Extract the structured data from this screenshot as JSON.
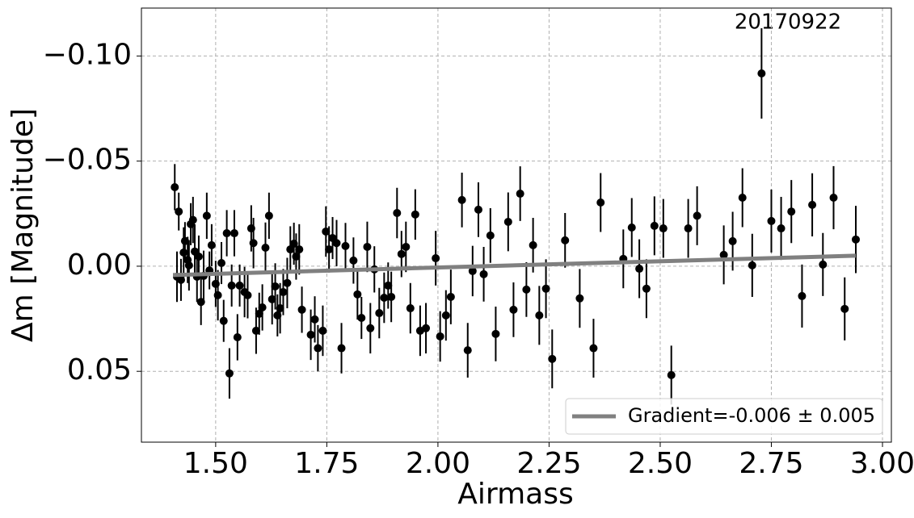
{
  "chart_data": {
    "type": "scatter",
    "xlabel": "Airmass",
    "ylabel": "Δm [Magnitude]",
    "annotation": "20170922",
    "xlim": [
      1.333,
      3.02
    ],
    "ylim": [
      0.0837,
      -0.1228
    ],
    "xticks": [
      {
        "value": 1.5,
        "label": "1.50"
      },
      {
        "value": 1.75,
        "label": "1.75"
      },
      {
        "value": 2.0,
        "label": "2.00"
      },
      {
        "value": 2.25,
        "label": "2.25"
      },
      {
        "value": 2.5,
        "label": "2.50"
      },
      {
        "value": 2.75,
        "label": "2.75"
      },
      {
        "value": 3.0,
        "label": "3.00"
      }
    ],
    "yticks": [
      {
        "value": -0.1,
        "label": "−0.10"
      },
      {
        "value": -0.05,
        "label": "−0.05"
      },
      {
        "value": 0.0,
        "label": "0.00"
      },
      {
        "value": 0.05,
        "label": "0.05"
      }
    ],
    "grid": true,
    "color": "#000000",
    "x": [
      1.408,
      1.413,
      1.417,
      1.422,
      1.428,
      1.431,
      1.437,
      1.44,
      1.444,
      1.449,
      1.453,
      1.458,
      1.462,
      1.467,
      1.473,
      1.48,
      1.486,
      1.491,
      1.5,
      1.505,
      1.513,
      1.518,
      1.525,
      1.531,
      1.536,
      1.542,
      1.549,
      1.554,
      1.565,
      1.572,
      1.58,
      1.585,
      1.591,
      1.598,
      1.605,
      1.612,
      1.62,
      1.627,
      1.634,
      1.639,
      1.645,
      1.652,
      1.661,
      1.668,
      1.676,
      1.681,
      1.688,
      1.694,
      1.714,
      1.723,
      1.73,
      1.741,
      1.748,
      1.755,
      1.763,
      1.772,
      1.783,
      1.792,
      1.81,
      1.819,
      1.828,
      1.841,
      1.848,
      1.857,
      1.868,
      1.879,
      1.888,
      1.895,
      1.908,
      1.918,
      1.928,
      1.938,
      1.949,
      1.96,
      1.973,
      1.995,
      2.005,
      2.018,
      2.029,
      2.054,
      2.067,
      2.078,
      2.091,
      2.103,
      2.118,
      2.13,
      2.158,
      2.17,
      2.185,
      2.199,
      2.214,
      2.228,
      2.243,
      2.257,
      2.286,
      2.319,
      2.35,
      2.366,
      2.417,
      2.436,
      2.453,
      2.469,
      2.487,
      2.507,
      2.525,
      2.563,
      2.583,
      2.643,
      2.663,
      2.685,
      2.707,
      2.728,
      2.75,
      2.772,
      2.795,
      2.819,
      2.842,
      2.866,
      2.89,
      2.915,
      2.94
    ],
    "values": [
      -0.0376,
      0.005,
      -0.026,
      0.0065,
      -0.0065,
      -0.012,
      -0.003,
      -0.0004,
      -0.02,
      -0.022,
      -0.007,
      0.005,
      -0.0046,
      0.017,
      0.0046,
      -0.024,
      0.002,
      -0.01,
      0.0084,
      0.0138,
      -0.0015,
      0.026,
      -0.0157,
      0.051,
      0.0092,
      -0.0157,
      0.0338,
      0.0092,
      0.0123,
      0.0138,
      -0.018,
      -0.011,
      0.0307,
      0.0226,
      0.0196,
      -0.0088,
      -0.024,
      0.0157,
      0.0096,
      0.0234,
      0.02,
      0.0123,
      0.008,
      -0.008,
      -0.0107,
      -0.0046,
      -0.008,
      0.0207,
      0.0326,
      0.0253,
      0.039,
      0.0307,
      -0.0165,
      -0.008,
      -0.0134,
      -0.011,
      0.039,
      -0.0096,
      -0.0027,
      0.0134,
      0.0246,
      -0.0092,
      0.0295,
      0.0015,
      0.0223,
      0.015,
      0.0092,
      0.0146,
      -0.0253,
      -0.0058,
      -0.0092,
      0.02,
      -0.0246,
      0.0307,
      0.0295,
      -0.0038,
      0.0334,
      0.0234,
      0.0146,
      -0.0315,
      0.04,
      0.0023,
      -0.0269,
      0.0038,
      -0.0146,
      0.0322,
      -0.0211,
      0.0207,
      -0.0345,
      0.0111,
      -0.01,
      0.0234,
      0.0107,
      0.0441,
      -0.0123,
      0.0153,
      0.039,
      -0.0303,
      -0.0035,
      -0.0184,
      0.0012,
      0.0107,
      -0.0192,
      -0.018,
      0.0518,
      -0.018,
      -0.024,
      -0.0054,
      -0.0119,
      -0.0326,
      -0.0004,
      -0.0917,
      -0.0215,
      -0.018,
      -0.026,
      0.0142,
      -0.0292,
      -0.0008,
      -0.0326,
      0.0203,
      -0.0127
    ],
    "errors": [
      0.011,
      0.012,
      0.009,
      0.01,
      0.012,
      0.009,
      0.011,
      0.012,
      0.01,
      0.011,
      0.013,
      0.012,
      0.01,
      0.011,
      0.012,
      0.011,
      0.009,
      0.01,
      0.011,
      0.012,
      0.01,
      0.01,
      0.011,
      0.012,
      0.01,
      0.011,
      0.011,
      0.01,
      0.012,
      0.011,
      0.011,
      0.012,
      0.011,
      0.01,
      0.011,
      0.012,
      0.011,
      0.012,
      0.011,
      0.01,
      0.012,
      0.011,
      0.012,
      0.011,
      0.01,
      0.011,
      0.012,
      0.011,
      0.012,
      0.011,
      0.011,
      0.012,
      0.012,
      0.011,
      0.01,
      0.011,
      0.012,
      0.011,
      0.011,
      0.012,
      0.01,
      0.012,
      0.012,
      0.011,
      0.012,
      0.012,
      0.011,
      0.012,
      0.012,
      0.011,
      0.012,
      0.012,
      0.012,
      0.012,
      0.012,
      0.013,
      0.012,
      0.012,
      0.013,
      0.013,
      0.013,
      0.012,
      0.013,
      0.013,
      0.013,
      0.013,
      0.014,
      0.013,
      0.013,
      0.013,
      0.013,
      0.014,
      0.014,
      0.014,
      0.013,
      0.014,
      0.014,
      0.014,
      0.014,
      0.014,
      0.014,
      0.014,
      0.014,
      0.014,
      0.014,
      0.014,
      0.014,
      0.014,
      0.014,
      0.014,
      0.015,
      0.0215,
      0.015,
      0.015,
      0.015,
      0.015,
      0.015,
      0.015,
      0.015,
      0.015,
      0.016
    ],
    "fit": {
      "label": "Gradient=-0.006 ± 0.005",
      "color": "#808080",
      "x": [
        1.404,
        2.94
      ],
      "values": [
        0.0042,
        -0.005
      ]
    }
  }
}
